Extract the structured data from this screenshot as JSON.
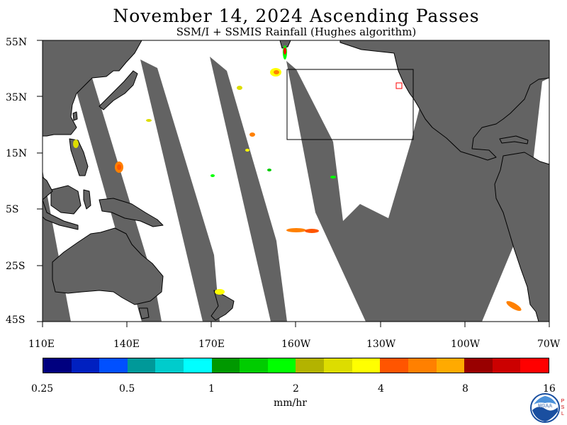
{
  "header": {
    "title": "November 14, 2024  Ascending Passes",
    "subtitle": "SSM/I + SSMIS Rainfall (Hughes algorithm)"
  },
  "map": {
    "lat_labels": [
      "55N",
      "35N",
      "15N",
      "5S",
      "25S",
      "45S"
    ],
    "lon_labels": [
      "110E",
      "140E",
      "170E",
      "160W",
      "130W",
      "100W",
      "70W"
    ],
    "lat_range": [
      "55N",
      "45S"
    ],
    "lon_range": [
      "110E",
      "70W"
    ],
    "projection": "equirectangular",
    "colors": {
      "land": "#636363",
      "no_data_gap": "#636363",
      "ocean_covered": "#ffffff",
      "coastline": "#000000",
      "box_outline": "#000000",
      "marker": "#ff0000"
    },
    "features": [
      "swath-gaps",
      "land-masses",
      "rain-patches",
      "outlined-region",
      "location-marker"
    ]
  },
  "colorbar": {
    "colors": [
      "#00007f",
      "#0020c0",
      "#0050ff",
      "#009999",
      "#00cccc",
      "#00ffff",
      "#009900",
      "#00cc00",
      "#00ff00",
      "#b3b300",
      "#dddd00",
      "#ffff00",
      "#ff5500",
      "#ff8000",
      "#ffaa00",
      "#990000",
      "#cc0000",
      "#ff0000"
    ],
    "tick_labels": [
      "0.25",
      "0.5",
      "1",
      "2",
      "4",
      "8",
      "16"
    ],
    "units": "mm/hr"
  },
  "logo": {
    "text": "NOAA",
    "side_letters": [
      "P",
      "S",
      "L"
    ]
  }
}
